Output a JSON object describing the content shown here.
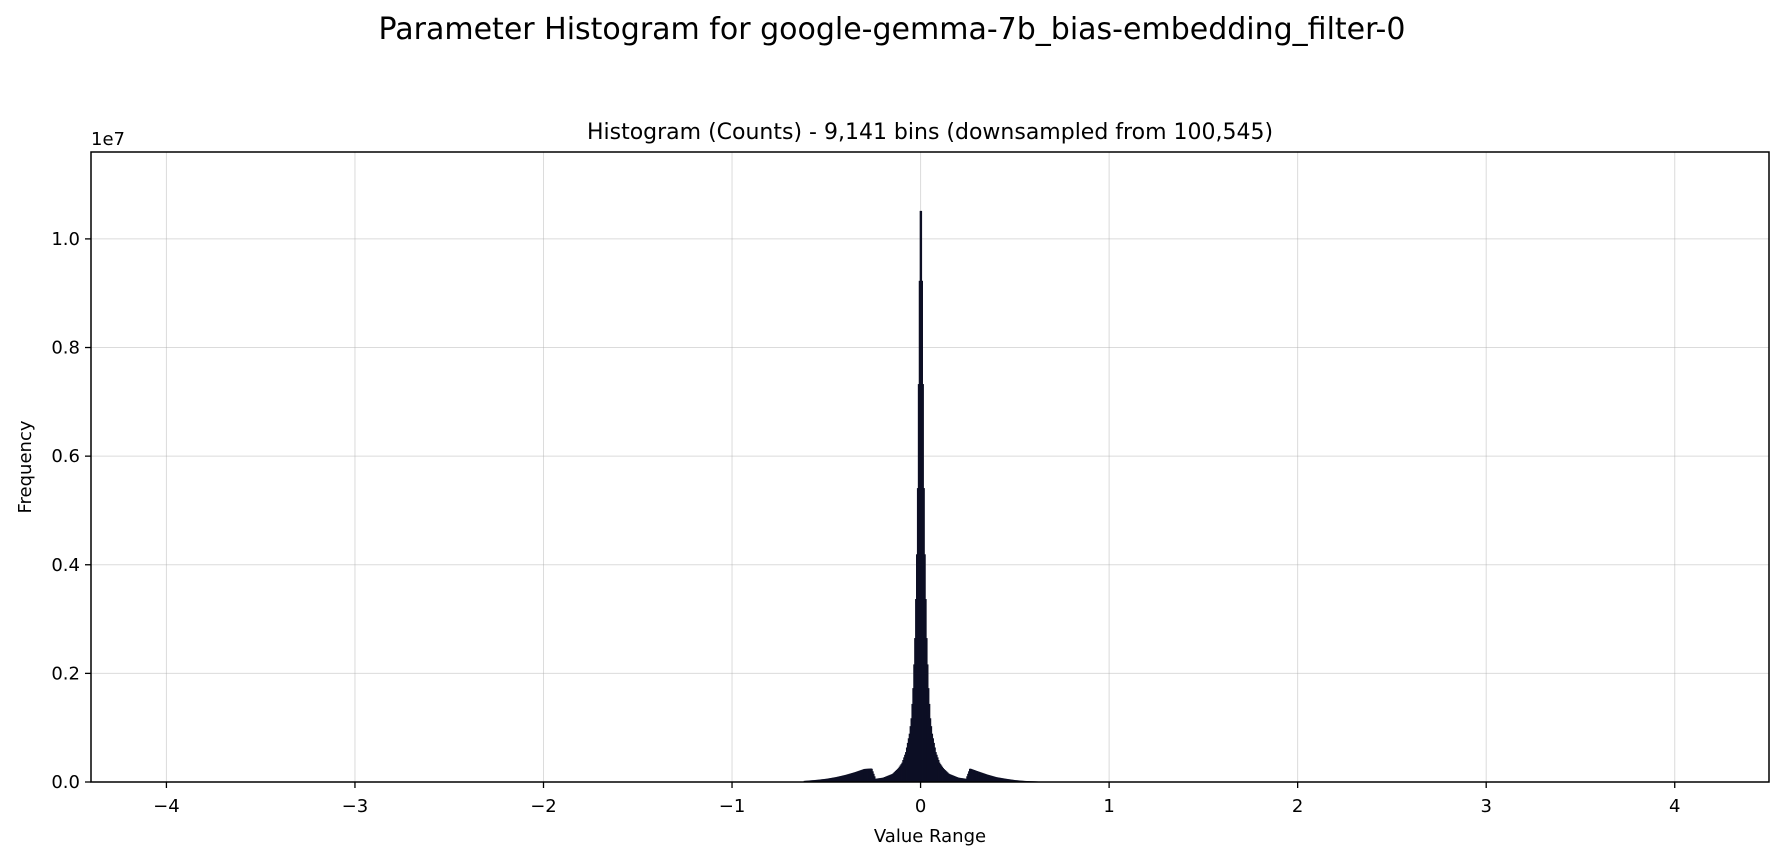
{
  "figure_title": "Parameter Histogram for google-gemma-7b_bias-embedding_filter-0",
  "chart_data": {
    "type": "bar",
    "title": "Histogram (Counts) - 9,141 bins (downsampled from 100,545)",
    "xlabel": "Value Range",
    "ylabel": "Frequency",
    "y_offset_label": "1e7",
    "y_scale": 10000000,
    "xlim": [
      -4.4,
      4.5
    ],
    "ylim": [
      0,
      11600000
    ],
    "x_ticks": [
      -4,
      -3,
      -2,
      -1,
      0,
      1,
      2,
      3,
      4
    ],
    "x_tick_labels": [
      "−4",
      "−3",
      "−2",
      "−1",
      "0",
      "1",
      "2",
      "3",
      "4"
    ],
    "y_ticks": [
      0,
      2000000,
      4000000,
      6000000,
      8000000,
      10000000
    ],
    "y_tick_labels": [
      "0.0",
      "0.2",
      "0.4",
      "0.6",
      "0.8",
      "1.0"
    ],
    "grid": true,
    "bar_color": "#0d0f24",
    "data_range": [
      -0.63,
      0.63
    ],
    "bins": {
      "x": [
        -0.62,
        -0.55,
        -0.5,
        -0.45,
        -0.4,
        -0.35,
        -0.3,
        -0.26,
        -0.24,
        -0.2,
        -0.15,
        -0.12,
        -0.1,
        -0.08,
        -0.06,
        -0.05,
        -0.04,
        -0.03,
        -0.02,
        -0.015,
        -0.01,
        -0.005,
        0,
        0.005,
        0.01,
        0.015,
        0.02,
        0.03,
        0.04,
        0.05,
        0.06,
        0.08,
        0.1,
        0.12,
        0.15,
        0.2,
        0.24,
        0.26,
        0.3,
        0.35,
        0.4,
        0.45,
        0.5,
        0.55,
        0.62
      ],
      "y": [
        20000,
        40000,
        60000,
        90000,
        130000,
        180000,
        240000,
        250000,
        60000,
        80000,
        150000,
        250000,
        350000,
        550000,
        900000,
        1200000,
        1800000,
        2800000,
        4500000,
        6000000,
        8300000,
        10000000,
        11000000,
        10000000,
        8300000,
        6000000,
        4500000,
        2800000,
        1800000,
        1200000,
        900000,
        550000,
        350000,
        250000,
        150000,
        80000,
        60000,
        250000,
        200000,
        140000,
        90000,
        60000,
        35000,
        20000,
        10000
      ]
    }
  }
}
